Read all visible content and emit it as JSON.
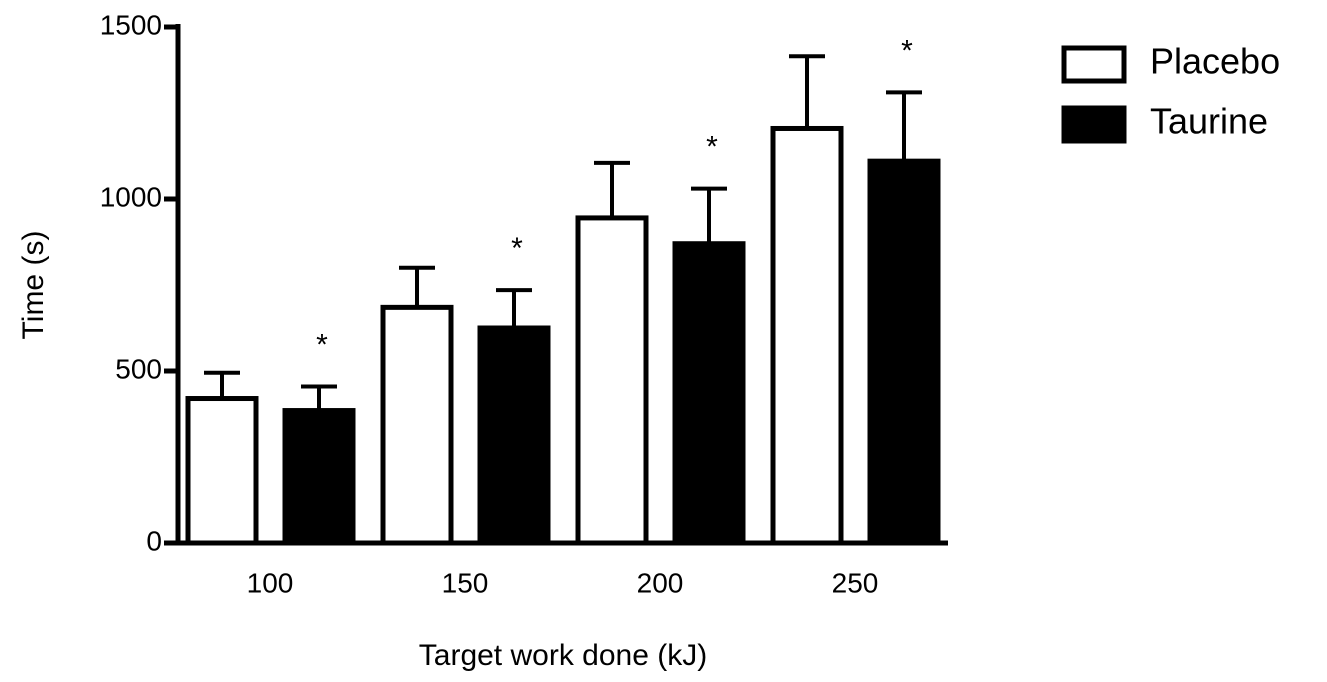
{
  "chart_data": {
    "type": "bar",
    "xlabel": "Target work done (kJ)",
    "ylabel": "Time (s)",
    "categories": [
      "100",
      "150",
      "200",
      "250"
    ],
    "series": [
      {
        "name": "Placebo",
        "color": "#ffffff",
        "values": [
          420,
          685,
          945,
          1205
        ],
        "errors": [
          75,
          115,
          160,
          210
        ]
      },
      {
        "name": "Taurine",
        "color": "#000000",
        "values": [
          385,
          625,
          870,
          1110
        ],
        "errors": [
          70,
          110,
          160,
          200
        ],
        "annotations": [
          "*",
          "*",
          "*",
          "*"
        ]
      }
    ],
    "ylim": [
      0,
      1500
    ],
    "yticks": [
      0,
      500,
      1000,
      1500
    ],
    "legend": "upper right"
  }
}
